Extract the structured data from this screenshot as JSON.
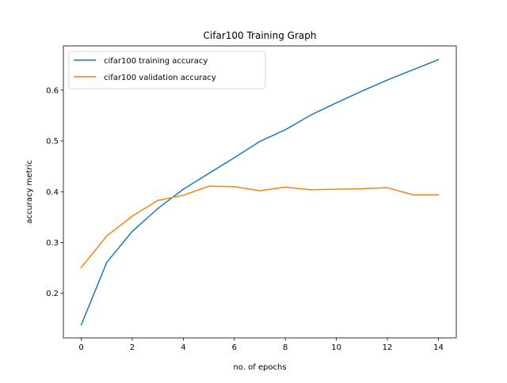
{
  "chart_data": {
    "type": "line",
    "title": "Cifar100 Training Graph",
    "xlabel": "no. of epochs",
    "ylabel": "accuracy metric",
    "x": [
      0,
      1,
      2,
      3,
      4,
      5,
      6,
      7,
      8,
      9,
      10,
      11,
      12,
      13,
      14
    ],
    "xlim": [
      -0.7,
      14.7
    ],
    "ylim": [
      0.1124,
      0.687
    ],
    "xticks": [
      0,
      2,
      4,
      6,
      8,
      10,
      12,
      14
    ],
    "xtick_labels": [
      "0",
      "2",
      "4",
      "6",
      "8",
      "10",
      "12",
      "14"
    ],
    "yticks": [
      0.2,
      0.3,
      0.4,
      0.5,
      0.6
    ],
    "ytick_labels": [
      "0.2",
      "0.3",
      "0.4",
      "0.5",
      "0.6"
    ],
    "grid": false,
    "legend_position": "top-left",
    "series": [
      {
        "name": "cifar100 training accuracy",
        "color": "#1f77b4",
        "values": [
          0.138,
          0.261,
          0.322,
          0.367,
          0.405,
          0.436,
          0.467,
          0.499,
          0.522,
          0.551,
          0.575,
          0.598,
          0.62,
          0.64,
          0.66
        ]
      },
      {
        "name": "cifar100 validation accuracy",
        "color": "#ff7f0e",
        "values": [
          0.251,
          0.313,
          0.352,
          0.383,
          0.393,
          0.411,
          0.41,
          0.402,
          0.409,
          0.404,
          0.405,
          0.406,
          0.408,
          0.394,
          0.394
        ]
      }
    ]
  }
}
